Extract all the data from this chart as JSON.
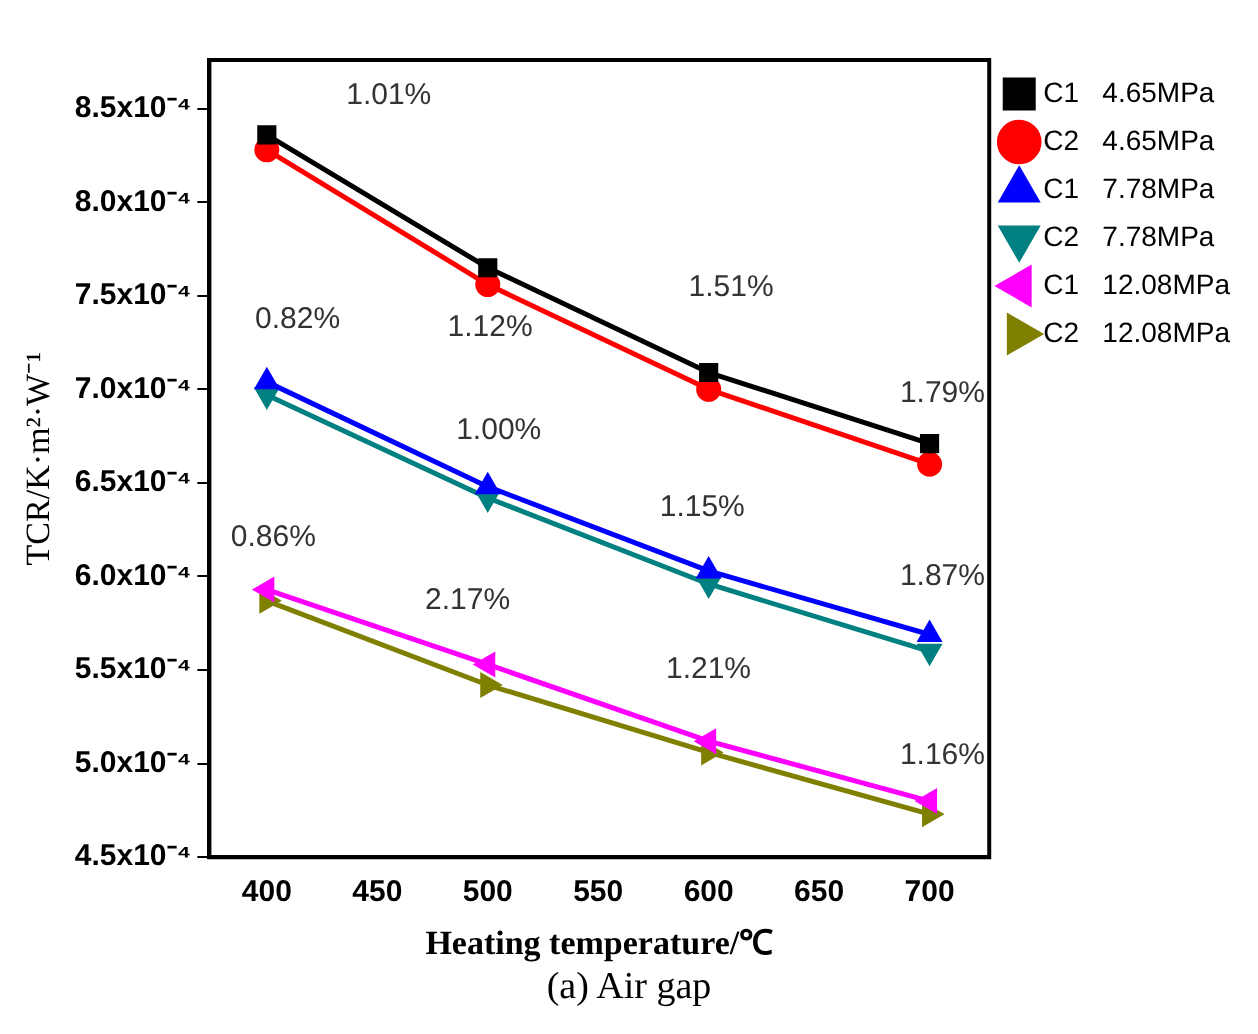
{
  "chart_data": {
    "type": "line",
    "xlabel": "Heating temperature/℃",
    "ylabel": "TCR/K·m²·W⁻¹",
    "x": [
      400,
      500,
      600,
      700
    ],
    "xlim": [
      374,
      727
    ],
    "xticks": [
      400,
      450,
      500,
      550,
      600,
      650,
      700
    ],
    "ylim": [
      0.00045,
      0.000876
    ],
    "yticks": [
      {
        "value": 0.00045,
        "label": "4.5x10⁻⁴"
      },
      {
        "value": 0.0005,
        "label": "5.0x10⁻⁴"
      },
      {
        "value": 0.00055,
        "label": "5.5x10⁻⁴"
      },
      {
        "value": 0.0006,
        "label": "6.0x10⁻⁴"
      },
      {
        "value": 0.00065,
        "label": "6.5x10⁻⁴"
      },
      {
        "value": 0.0007,
        "label": "7.0x10⁻⁴"
      },
      {
        "value": 0.00075,
        "label": "7.5x10⁻⁴"
      },
      {
        "value": 0.0008,
        "label": "8.0x10⁻⁴"
      },
      {
        "value": 0.00085,
        "label": "8.5x10⁻⁴"
      }
    ],
    "series": [
      {
        "name": "C1   4.65MPa",
        "color": "#000000",
        "marker": "square",
        "values": [
          0.000836,
          0.000765,
          0.000709,
          0.000671
        ]
      },
      {
        "name": "C2   4.65MPa",
        "color": "#ff0000",
        "marker": "circle",
        "values": [
          0.000828,
          0.000756,
          0.0007,
          0.00066
        ]
      },
      {
        "name": "C1   7.78MPa",
        "color": "#0000ff",
        "marker": "triangle",
        "values": [
          0.000704,
          0.000648,
          0.000603,
          0.000569
        ]
      },
      {
        "name": "C2   7.78MPa",
        "color": "#008080",
        "marker": "triangle",
        "values": [
          0.000697,
          0.000642,
          0.000596,
          0.00056
        ]
      },
      {
        "name": "C1   12.08MPa",
        "color": "#ff00ff",
        "marker": "triangle",
        "values": [
          0.000593,
          0.000553,
          0.000512,
          0.00048
        ]
      },
      {
        "name": "C2   12.08MPa",
        "color": "#808000",
        "marker": "triangle",
        "values": [
          0.000587,
          0.000542,
          0.000506,
          0.000473
        ]
      }
    ],
    "annotations": [
      "1.01%",
      "1.12%",
      "1.51%",
      "1.79%",
      "0.82%",
      "1.00%",
      "1.15%",
      "1.87%",
      "0.86%",
      "2.17%",
      "1.21%",
      "1.16%",
      "(a)  Air gap"
    ],
    "legend": "right",
    "grid": false
  }
}
